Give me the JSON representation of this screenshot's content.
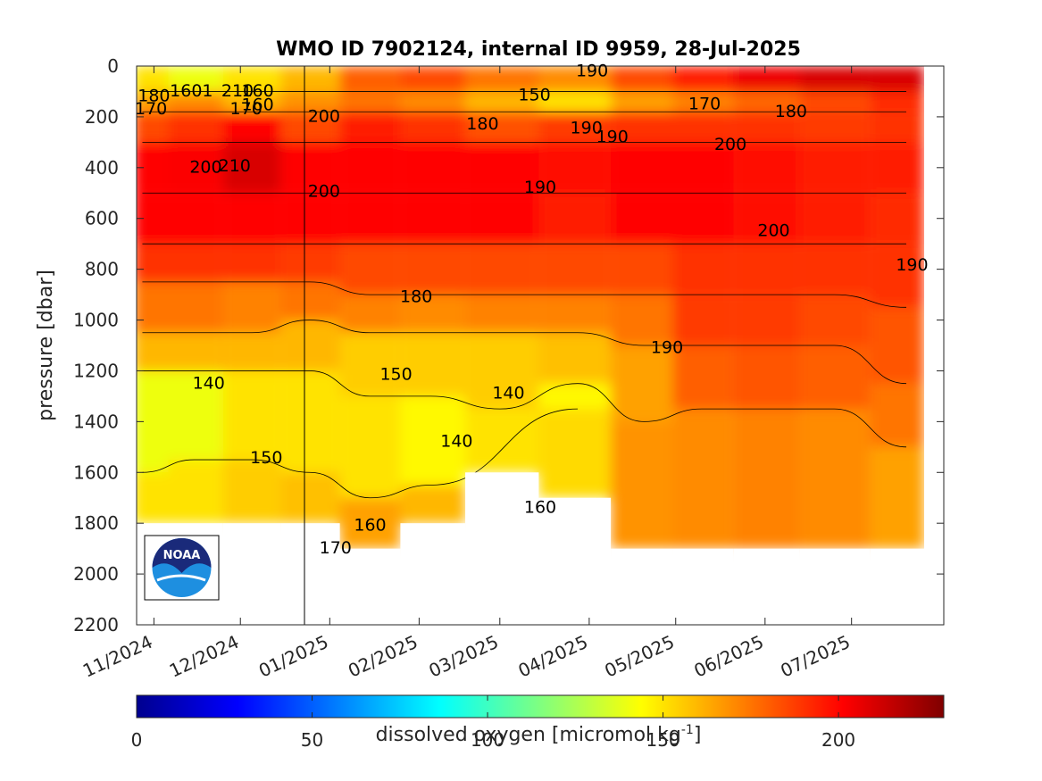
{
  "chart_data": {
    "type": "heatmap",
    "title": "WMO ID 7902124, internal ID 9959, 28-Jul-2025",
    "ylabel": "pressure [dbar]",
    "ylim": [
      0,
      2200
    ],
    "y_reversed": true,
    "y_ticks": [
      0,
      200,
      400,
      600,
      800,
      1000,
      1200,
      1400,
      1600,
      1800,
      2000,
      2200
    ],
    "x_ticks": [
      "11/2024",
      "12/2024",
      "01/2025",
      "02/2025",
      "03/2025",
      "04/2025",
      "05/2025",
      "06/2025",
      "07/2025"
    ],
    "colorbar": {
      "label": "dissolved oxygen [micromol kg",
      "label_superscript": "-1",
      "label_suffix": "]",
      "range": [
        0,
        230
      ],
      "ticks": [
        0,
        50,
        100,
        150,
        200
      ],
      "colormap": "jet"
    },
    "logo": "NOAA",
    "profile_columns": [
      {
        "date": "2024-10-28",
        "layers": [
          [
            0,
            100,
            150
          ],
          [
            100,
            180,
            165
          ],
          [
            180,
            300,
            185
          ],
          [
            300,
            500,
            200
          ],
          [
            500,
            700,
            200
          ],
          [
            700,
            850,
            190
          ],
          [
            850,
            1050,
            175
          ],
          [
            1050,
            1200,
            160
          ],
          [
            1200,
            1600,
            140
          ],
          [
            1600,
            1800,
            150
          ]
        ]
      },
      {
        "date": "2024-11-15",
        "layers": [
          [
            0,
            100,
            140
          ],
          [
            100,
            180,
            170
          ],
          [
            180,
            300,
            190
          ],
          [
            300,
            500,
            202
          ],
          [
            500,
            700,
            200
          ],
          [
            700,
            850,
            190
          ],
          [
            850,
            1050,
            175
          ],
          [
            1050,
            1200,
            160
          ],
          [
            1200,
            1550,
            140
          ],
          [
            1550,
            1800,
            150
          ]
        ]
      },
      {
        "date": "2024-12-05",
        "layers": [
          [
            0,
            100,
            150
          ],
          [
            100,
            180,
            160
          ],
          [
            180,
            300,
            200
          ],
          [
            300,
            500,
            210
          ],
          [
            500,
            700,
            200
          ],
          [
            700,
            850,
            190
          ],
          [
            850,
            1050,
            172
          ],
          [
            1050,
            1200,
            160
          ],
          [
            1200,
            1550,
            150
          ],
          [
            1550,
            1800,
            155
          ]
        ]
      },
      {
        "date": "2024-12-25",
        "layers": [
          [
            0,
            100,
            160
          ],
          [
            100,
            180,
            168
          ],
          [
            180,
            300,
            185
          ],
          [
            300,
            500,
            200
          ],
          [
            500,
            700,
            200
          ],
          [
            700,
            850,
            188
          ],
          [
            850,
            1000,
            175
          ],
          [
            1000,
            1200,
            160
          ],
          [
            1200,
            1600,
            150
          ],
          [
            1600,
            1800,
            158
          ]
        ]
      },
      {
        "date": "2025-01-15",
        "layers": [
          [
            0,
            100,
            180
          ],
          [
            100,
            180,
            175
          ],
          [
            180,
            300,
            195
          ],
          [
            300,
            500,
            200
          ],
          [
            500,
            700,
            200
          ],
          [
            700,
            900,
            185
          ],
          [
            900,
            1050,
            172
          ],
          [
            1050,
            1300,
            155
          ],
          [
            1300,
            1700,
            150
          ],
          [
            1700,
            1900,
            165
          ]
        ]
      },
      {
        "date": "2025-02-05",
        "layers": [
          [
            0,
            100,
            185
          ],
          [
            100,
            180,
            170
          ],
          [
            180,
            300,
            190
          ],
          [
            300,
            500,
            200
          ],
          [
            500,
            700,
            200
          ],
          [
            700,
            900,
            185
          ],
          [
            900,
            1050,
            170
          ],
          [
            1050,
            1300,
            155
          ],
          [
            1300,
            1650,
            145
          ],
          [
            1650,
            1800,
            160
          ]
        ]
      },
      {
        "date": "2025-03-01",
        "layers": [
          [
            0,
            100,
            175
          ],
          [
            100,
            180,
            160
          ],
          [
            180,
            300,
            183
          ],
          [
            300,
            500,
            200
          ],
          [
            500,
            700,
            200
          ],
          [
            700,
            900,
            185
          ],
          [
            900,
            1050,
            172
          ],
          [
            1050,
            1350,
            155
          ],
          [
            1350,
            1600,
            150
          ]
        ]
      },
      {
        "date": "2025-03-28",
        "layers": [
          [
            0,
            100,
            170
          ],
          [
            100,
            180,
            150
          ],
          [
            180,
            300,
            188
          ],
          [
            300,
            500,
            198
          ],
          [
            500,
            700,
            195
          ],
          [
            700,
            900,
            185
          ],
          [
            900,
            1050,
            172
          ],
          [
            1050,
            1250,
            158
          ],
          [
            1250,
            1350,
            145
          ],
          [
            1350,
            1700,
            152
          ]
        ]
      },
      {
        "date": "2025-04-20",
        "layers": [
          [
            0,
            100,
            185
          ],
          [
            100,
            180,
            165
          ],
          [
            180,
            300,
            190
          ],
          [
            300,
            500,
            200
          ],
          [
            500,
            700,
            200
          ],
          [
            700,
            900,
            185
          ],
          [
            900,
            1100,
            175
          ],
          [
            1100,
            1400,
            165
          ],
          [
            1400,
            1900,
            168
          ]
        ]
      },
      {
        "date": "2025-05-10",
        "layers": [
          [
            0,
            100,
            195
          ],
          [
            100,
            180,
            172
          ],
          [
            180,
            300,
            190
          ],
          [
            300,
            500,
            200
          ],
          [
            500,
            700,
            200
          ],
          [
            700,
            900,
            190
          ],
          [
            900,
            1100,
            188
          ],
          [
            1100,
            1350,
            180
          ],
          [
            1350,
            1900,
            170
          ]
        ]
      },
      {
        "date": "2025-06-01",
        "layers": [
          [
            0,
            100,
            205
          ],
          [
            100,
            180,
            178
          ],
          [
            180,
            300,
            190
          ],
          [
            300,
            500,
            198
          ],
          [
            500,
            700,
            198
          ],
          [
            700,
            900,
            190
          ],
          [
            900,
            1100,
            188
          ],
          [
            1100,
            1350,
            182
          ],
          [
            1350,
            1900,
            172
          ]
        ]
      },
      {
        "date": "2025-06-25",
        "layers": [
          [
            0,
            100,
            210
          ],
          [
            100,
            180,
            185
          ],
          [
            180,
            300,
            188
          ],
          [
            300,
            500,
            195
          ],
          [
            500,
            700,
            195
          ],
          [
            700,
            900,
            190
          ],
          [
            900,
            1100,
            185
          ],
          [
            1100,
            1350,
            180
          ],
          [
            1350,
            1900,
            170
          ]
        ]
      },
      {
        "date": "2025-07-20",
        "layers": [
          [
            0,
            100,
            210
          ],
          [
            100,
            180,
            192
          ],
          [
            180,
            300,
            190
          ],
          [
            300,
            500,
            195
          ],
          [
            500,
            700,
            192
          ],
          [
            700,
            950,
            190
          ],
          [
            950,
            1250,
            182
          ],
          [
            1250,
            1500,
            175
          ],
          [
            1500,
            1900,
            165
          ]
        ]
      }
    ],
    "contour_labels": [
      {
        "text": "190",
        "date": "2025-04-02",
        "p": 15
      },
      {
        "text": "180",
        "date": "2024-11-01",
        "p": 115
      },
      {
        "text": "1601",
        "date": "2024-11-14",
        "p": 95
      },
      {
        "text": "210",
        "date": "2024-11-30",
        "p": 95
      },
      {
        "text": "160",
        "date": "2024-12-07",
        "p": 95
      },
      {
        "text": "170",
        "date": "2024-10-31",
        "p": 165
      },
      {
        "text": "170",
        "date": "2024-12-03",
        "p": 165
      },
      {
        "text": "160",
        "date": "2024-12-07",
        "p": 150
      },
      {
        "text": "200",
        "date": "2024-12-30",
        "p": 195
      },
      {
        "text": "150",
        "date": "2025-03-13",
        "p": 110
      },
      {
        "text": "170",
        "date": "2025-05-11",
        "p": 145
      },
      {
        "text": "180",
        "date": "2025-06-10",
        "p": 175
      },
      {
        "text": "180",
        "date": "2025-02-23",
        "p": 225
      },
      {
        "text": "190",
        "date": "2025-03-31",
        "p": 240
      },
      {
        "text": "190",
        "date": "2025-04-09",
        "p": 275
      },
      {
        "text": "200",
        "date": "2025-05-20",
        "p": 305
      },
      {
        "text": "200",
        "date": "2024-11-19",
        "p": 395
      },
      {
        "text": "210",
        "date": "2024-11-29",
        "p": 390
      },
      {
        "text": "200",
        "date": "2024-12-30",
        "p": 490
      },
      {
        "text": "190",
        "date": "2025-03-15",
        "p": 475
      },
      {
        "text": "200",
        "date": "2025-06-04",
        "p": 645
      },
      {
        "text": "190",
        "date": "2025-07-22",
        "p": 780
      },
      {
        "text": "180",
        "date": "2025-01-31",
        "p": 905
      },
      {
        "text": "190",
        "date": "2025-04-28",
        "p": 1105
      },
      {
        "text": "140",
        "date": "2024-11-20",
        "p": 1245
      },
      {
        "text": "150",
        "date": "2025-01-24",
        "p": 1210
      },
      {
        "text": "140",
        "date": "2025-03-04",
        "p": 1285
      },
      {
        "text": "150",
        "date": "2024-12-10",
        "p": 1540
      },
      {
        "text": "140",
        "date": "2025-02-14",
        "p": 1475
      },
      {
        "text": "160",
        "date": "2025-03-15",
        "p": 1735
      },
      {
        "text": "160",
        "date": "2025-01-15",
        "p": 1805
      },
      {
        "text": "170",
        "date": "2025-01-03",
        "p": 1895
      }
    ]
  }
}
